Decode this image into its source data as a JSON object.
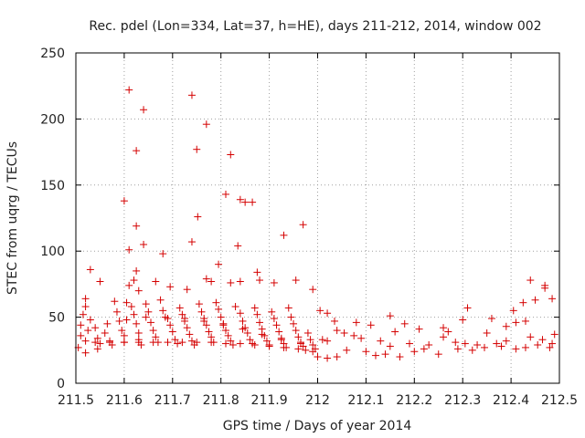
{
  "chart_data": {
    "type": "scatter",
    "title": "Rec. pdel (Lon=334, Lat=37, h=HE), days 211-212, 2014, window 002",
    "xlabel": "GPS time / Days of year 2014",
    "ylabel": "STEC from uqrg / TECUs",
    "xlim": [
      211.5,
      212.5
    ],
    "ylim": [
      0,
      250
    ],
    "xticks": [
      211.5,
      211.6,
      211.7,
      211.8,
      211.9,
      212,
      212.1,
      212.2,
      212.3,
      212.4,
      212.5
    ],
    "xtick_labels": [
      "211.5",
      "211.6",
      "211.7",
      "211.8",
      "211.9",
      "212",
      "212.1",
      "212.2",
      "212.3",
      "212.4",
      "212.5"
    ],
    "yticks": [
      0,
      50,
      100,
      150,
      200,
      250
    ],
    "ytick_labels": [
      "0",
      "50",
      "100",
      "150",
      "200",
      "250"
    ],
    "grid": true,
    "marker": "+",
    "color": "#d40000",
    "series": [
      {
        "points": [
          [
            211.61,
            222
          ],
          [
            211.74,
            218
          ],
          [
            211.64,
            207
          ],
          [
            211.77,
            196
          ],
          [
            211.625,
            176
          ],
          [
            211.75,
            177
          ],
          [
            211.82,
            173
          ],
          [
            211.81,
            143
          ],
          [
            211.84,
            139
          ],
          [
            211.865,
            137
          ],
          [
            211.6,
            138
          ],
          [
            211.85,
            137
          ],
          [
            211.752,
            126
          ],
          [
            211.97,
            120
          ],
          [
            211.625,
            119
          ],
          [
            211.93,
            112
          ],
          [
            211.74,
            107
          ],
          [
            211.64,
            105
          ],
          [
            211.835,
            104
          ],
          [
            211.61,
            101
          ],
          [
            211.68,
            98
          ],
          [
            211.795,
            90
          ],
          [
            211.82,
            76
          ],
          [
            211.875,
            84
          ],
          [
            211.53,
            86
          ],
          [
            211.55,
            77
          ],
          [
            211.625,
            85
          ],
          [
            211.62,
            78
          ],
          [
            211.665,
            77
          ],
          [
            211.61,
            74
          ],
          [
            211.695,
            73
          ],
          [
            211.77,
            79
          ],
          [
            211.78,
            77
          ],
          [
            211.73,
            71
          ],
          [
            211.88,
            78
          ],
          [
            211.91,
            76
          ],
          [
            211.955,
            78
          ],
          [
            211.99,
            71
          ],
          [
            211.84,
            77
          ],
          [
            211.63,
            70
          ],
          [
            212.44,
            78
          ],
          [
            212.47,
            74
          ],
          [
            212.47,
            72
          ],
          [
            212.485,
            64
          ],
          [
            212.45,
            63
          ],
          [
            212.425,
            61
          ],
          [
            212.405,
            55
          ],
          [
            212.31,
            57
          ],
          [
            212.36,
            49
          ],
          [
            212.15,
            51
          ],
          [
            212.08,
            46
          ],
          [
            212.11,
            44
          ],
          [
            212.18,
            45
          ],
          [
            212.26,
            42
          ],
          [
            212.27,
            39
          ],
          [
            212.39,
            43
          ],
          [
            212.41,
            46
          ],
          [
            212.43,
            47
          ],
          [
            212.44,
            35
          ],
          [
            212.465,
            33
          ],
          [
            212.49,
            37
          ],
          [
            212.485,
            30
          ],
          [
            212.43,
            27
          ],
          [
            212.39,
            32
          ],
          [
            212.37,
            30
          ],
          [
            212.33,
            29
          ],
          [
            212.29,
            26
          ],
          [
            212.25,
            22
          ],
          [
            212.22,
            26
          ],
          [
            212.2,
            24
          ],
          [
            212.17,
            20
          ],
          [
            212.14,
            22
          ],
          [
            212.12,
            21
          ],
          [
            212.1,
            24
          ],
          [
            212.06,
            25
          ],
          [
            212.04,
            20
          ],
          [
            212.02,
            19
          ],
          [
            212.0,
            20
          ],
          [
            212.01,
            33
          ],
          [
            212.02,
            32
          ],
          [
            212.04,
            40
          ],
          [
            212.005,
            55
          ],
          [
            212.02,
            53
          ],
          [
            212.035,
            47
          ],
          [
            212.055,
            38
          ],
          [
            212.075,
            36
          ],
          [
            212.09,
            34
          ],
          [
            212.13,
            32
          ],
          [
            212.15,
            28
          ],
          [
            212.19,
            30
          ],
          [
            212.23,
            29
          ],
          [
            212.26,
            35
          ],
          [
            212.285,
            31
          ],
          [
            212.305,
            30
          ],
          [
            212.32,
            25
          ],
          [
            212.345,
            27
          ],
          [
            212.38,
            28
          ],
          [
            212.41,
            26
          ],
          [
            212.455,
            29
          ],
          [
            212.48,
            27
          ],
          [
            212.3,
            48
          ],
          [
            212.35,
            38
          ],
          [
            212.21,
            41
          ],
          [
            212.16,
            39
          ],
          [
            211.51,
            44
          ],
          [
            211.51,
            36
          ],
          [
            211.505,
            27
          ],
          [
            211.52,
            23
          ],
          [
            211.52,
            32
          ],
          [
            211.515,
            52
          ],
          [
            211.52,
            58
          ],
          [
            211.52,
            64
          ],
          [
            211.53,
            48
          ],
          [
            211.54,
            42
          ],
          [
            211.545,
            34
          ],
          [
            211.55,
            30
          ],
          [
            211.545,
            26
          ],
          [
            211.56,
            38
          ],
          [
            211.57,
            32
          ],
          [
            211.575,
            29
          ],
          [
            211.58,
            62
          ],
          [
            211.585,
            54
          ],
          [
            211.59,
            47
          ],
          [
            211.595,
            40
          ],
          [
            211.6,
            36
          ],
          [
            211.6,
            31
          ],
          [
            211.605,
            61
          ],
          [
            211.615,
            58
          ],
          [
            211.62,
            52
          ],
          [
            211.625,
            45
          ],
          [
            211.63,
            38
          ],
          [
            211.63,
            33
          ],
          [
            211.635,
            29
          ],
          [
            211.645,
            60
          ],
          [
            211.65,
            54
          ],
          [
            211.655,
            46
          ],
          [
            211.66,
            40
          ],
          [
            211.665,
            35
          ],
          [
            211.67,
            31
          ],
          [
            211.675,
            63
          ],
          [
            211.68,
            55
          ],
          [
            211.69,
            49
          ],
          [
            211.695,
            44
          ],
          [
            211.7,
            39
          ],
          [
            211.705,
            33
          ],
          [
            211.71,
            30
          ],
          [
            211.715,
            57
          ],
          [
            211.72,
            52
          ],
          [
            211.725,
            47
          ],
          [
            211.73,
            42
          ],
          [
            211.735,
            37
          ],
          [
            211.74,
            32
          ],
          [
            211.745,
            29
          ],
          [
            211.755,
            60
          ],
          [
            211.76,
            54
          ],
          [
            211.765,
            49
          ],
          [
            211.77,
            44
          ],
          [
            211.775,
            39
          ],
          [
            211.78,
            35
          ],
          [
            211.785,
            31
          ],
          [
            211.79,
            61
          ],
          [
            211.795,
            56
          ],
          [
            211.8,
            50
          ],
          [
            211.805,
            45
          ],
          [
            211.81,
            40
          ],
          [
            211.815,
            36
          ],
          [
            211.82,
            32
          ],
          [
            211.825,
            29
          ],
          [
            211.83,
            58
          ],
          [
            211.84,
            53
          ],
          [
            211.845,
            47
          ],
          [
            211.85,
            42
          ],
          [
            211.855,
            38
          ],
          [
            211.86,
            33
          ],
          [
            211.865,
            30
          ],
          [
            211.87,
            57
          ],
          [
            211.875,
            52
          ],
          [
            211.88,
            46
          ],
          [
            211.885,
            41
          ],
          [
            211.89,
            36
          ],
          [
            211.895,
            32
          ],
          [
            211.9,
            29
          ],
          [
            211.905,
            54
          ],
          [
            211.91,
            49
          ],
          [
            211.915,
            44
          ],
          [
            211.92,
            39
          ],
          [
            211.925,
            34
          ],
          [
            211.93,
            30
          ],
          [
            211.935,
            27
          ],
          [
            211.94,
            57
          ],
          [
            211.945,
            50
          ],
          [
            211.95,
            45
          ],
          [
            211.955,
            40
          ],
          [
            211.96,
            35
          ],
          [
            211.965,
            31
          ],
          [
            211.97,
            28
          ],
          [
            211.975,
            25
          ],
          [
            211.98,
            38
          ],
          [
            211.985,
            33
          ],
          [
            211.99,
            29
          ],
          [
            211.995,
            26
          ],
          [
            211.99,
            24
          ],
          [
            211.96,
            26
          ],
          [
            211.93,
            27
          ],
          [
            211.9,
            28
          ],
          [
            211.87,
            29
          ],
          [
            211.84,
            30
          ],
          [
            211.81,
            30
          ],
          [
            211.78,
            31
          ],
          [
            211.75,
            31
          ],
          [
            211.72,
            31
          ],
          [
            211.69,
            31
          ],
          [
            211.66,
            31
          ],
          [
            211.63,
            31
          ],
          [
            211.6,
            31
          ],
          [
            211.57,
            31
          ],
          [
            211.54,
            31
          ],
          [
            211.525,
            40
          ],
          [
            211.565,
            45
          ],
          [
            211.605,
            48
          ],
          [
            211.645,
            50
          ],
          [
            211.685,
            50
          ],
          [
            211.725,
            49
          ],
          [
            211.765,
            47
          ],
          [
            211.805,
            44
          ],
          [
            211.845,
            41
          ],
          [
            211.885,
            37
          ],
          [
            211.925,
            33
          ],
          [
            211.965,
            30
          ]
        ]
      }
    ]
  }
}
